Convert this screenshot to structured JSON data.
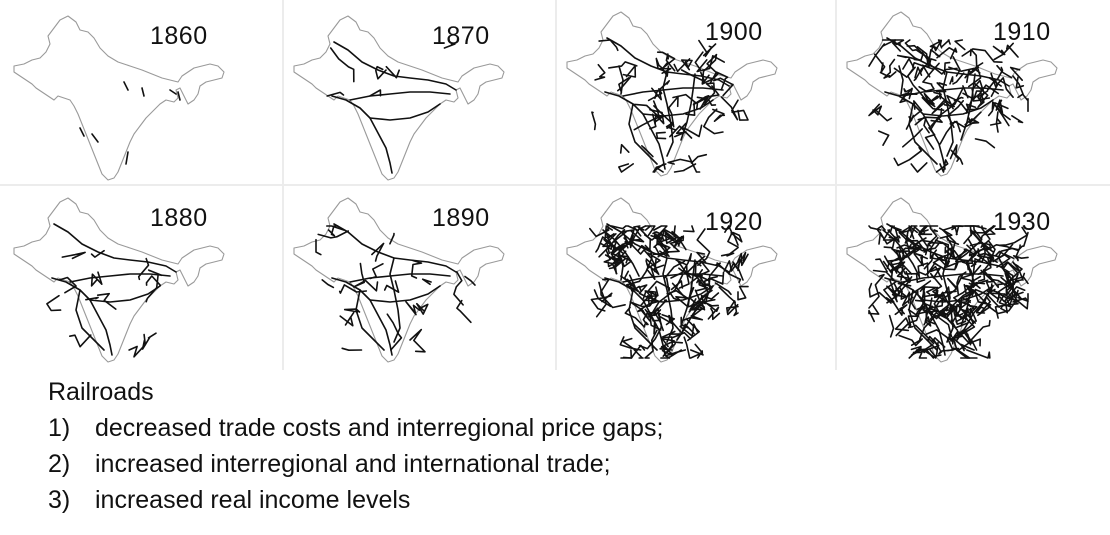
{
  "maps": [
    {
      "year": "1860",
      "density": 0
    },
    {
      "year": "1870",
      "density": 1
    },
    {
      "year": "1900",
      "density": 3
    },
    {
      "year": "1910",
      "density": 4
    },
    {
      "year": "1880",
      "density": 1.5
    },
    {
      "year": "1890",
      "density": 2
    },
    {
      "year": "1920",
      "density": 5
    },
    {
      "year": "1930",
      "density": 6
    }
  ],
  "caption": {
    "heading": "Railroads",
    "items": [
      {
        "number": "1)",
        "text": "decreased trade costs and interregional price gaps;"
      },
      {
        "number": "2)",
        "text": "increased interregional and international trade;"
      },
      {
        "number": "3)",
        "text": "increased real income levels"
      }
    ]
  }
}
